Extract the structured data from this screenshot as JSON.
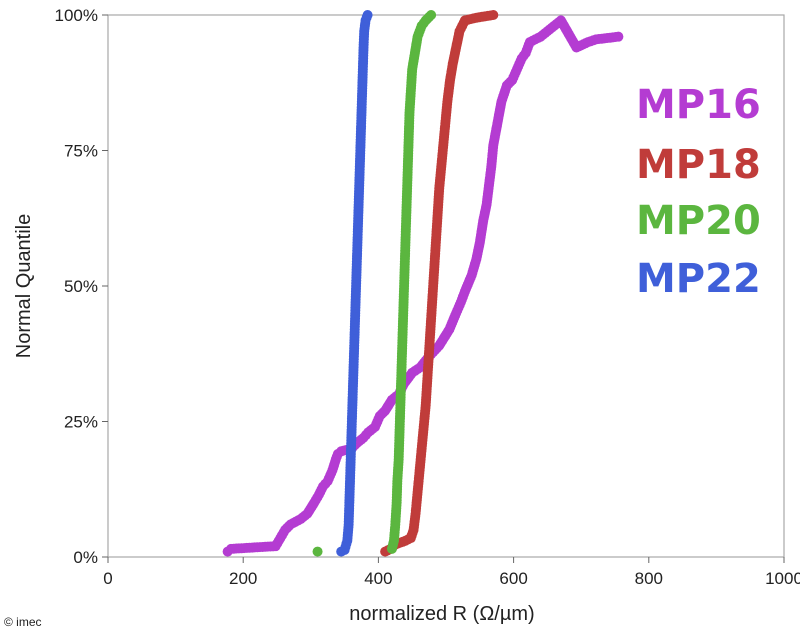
{
  "chart_data": {
    "type": "scatter",
    "title": "",
    "xlabel": "normalized R (Ω/µm)",
    "ylabel": "Normal Quantile",
    "xlim": [
      0,
      1000
    ],
    "ylim": [
      0,
      100
    ],
    "x_ticks": [
      "0",
      "200",
      "400",
      "600",
      "800",
      "1000"
    ],
    "y_ticks": [
      "0%",
      "25%",
      "50%",
      "75%",
      "100%"
    ],
    "grid": false,
    "legend_position": "right",
    "series": [
      {
        "name": "MP16",
        "color": "#b43cd2",
        "points": [
          [
            177,
            1
          ],
          [
            182,
            1.5
          ],
          [
            248,
            2
          ],
          [
            255,
            3.5
          ],
          [
            262,
            5
          ],
          [
            270,
            6
          ],
          [
            285,
            7
          ],
          [
            295,
            8
          ],
          [
            305,
            10
          ],
          [
            312,
            11.5
          ],
          [
            318,
            13
          ],
          [
            325,
            14
          ],
          [
            332,
            16
          ],
          [
            337,
            18
          ],
          [
            340,
            19
          ],
          [
            345,
            19.5
          ],
          [
            360,
            20
          ],
          [
            368,
            21
          ],
          [
            378,
            22
          ],
          [
            385,
            23
          ],
          [
            395,
            24
          ],
          [
            402,
            26
          ],
          [
            410,
            27
          ],
          [
            420,
            29
          ],
          [
            430,
            30
          ],
          [
            438,
            32
          ],
          [
            450,
            34
          ],
          [
            462,
            35
          ],
          [
            475,
            37
          ],
          [
            490,
            39
          ],
          [
            505,
            42
          ],
          [
            515,
            45
          ],
          [
            522,
            47
          ],
          [
            528,
            49
          ],
          [
            538,
            52
          ],
          [
            545,
            55
          ],
          [
            550,
            58
          ],
          [
            555,
            62
          ],
          [
            560,
            65
          ],
          [
            564,
            69
          ],
          [
            567,
            72
          ],
          [
            570,
            76
          ],
          [
            576,
            80
          ],
          [
            582,
            84
          ],
          [
            590,
            87
          ],
          [
            598,
            88
          ],
          [
            605,
            90
          ],
          [
            612,
            92
          ],
          [
            618,
            93
          ],
          [
            624,
            95
          ],
          [
            640,
            96
          ],
          [
            650,
            97
          ],
          [
            660,
            98
          ],
          [
            670,
            99
          ],
          [
            693,
            94
          ],
          [
            710,
            95
          ],
          [
            722,
            95.5
          ],
          [
            755,
            96
          ]
        ]
      },
      {
        "name": "MP18",
        "color": "#c03c3a",
        "points": [
          [
            410,
            1
          ],
          [
            418,
            1.5
          ],
          [
            425,
            2.3
          ],
          [
            440,
            3
          ],
          [
            448,
            3.5
          ],
          [
            452,
            5
          ],
          [
            455,
            8
          ],
          [
            458,
            12
          ],
          [
            461,
            16
          ],
          [
            464,
            20
          ],
          [
            467,
            24
          ],
          [
            470,
            28
          ],
          [
            472,
            32
          ],
          [
            474,
            36
          ],
          [
            476,
            40
          ],
          [
            478,
            44
          ],
          [
            480,
            48
          ],
          [
            482,
            52
          ],
          [
            484,
            56
          ],
          [
            486,
            60
          ],
          [
            488,
            64
          ],
          [
            490,
            68
          ],
          [
            493,
            72
          ],
          [
            496,
            76
          ],
          [
            499,
            80
          ],
          [
            502,
            84
          ],
          [
            506,
            88
          ],
          [
            510,
            91
          ],
          [
            515,
            94
          ],
          [
            520,
            97
          ],
          [
            528,
            99
          ],
          [
            545,
            99.5
          ],
          [
            570,
            100
          ]
        ]
      },
      {
        "name": "MP20",
        "color": "#5bb63f",
        "points": [
          [
            310,
            1
          ],
          [
            420,
            1.5
          ],
          [
            423,
            3
          ],
          [
            425,
            6
          ],
          [
            427,
            10
          ],
          [
            428,
            14
          ],
          [
            430,
            18
          ],
          [
            431,
            22
          ],
          [
            432,
            26
          ],
          [
            433,
            30
          ],
          [
            434,
            34
          ],
          [
            435,
            38
          ],
          [
            436,
            42
          ],
          [
            437,
            46
          ],
          [
            438,
            50
          ],
          [
            439,
            54
          ],
          [
            440,
            58
          ],
          [
            441,
            62
          ],
          [
            442,
            66
          ],
          [
            443,
            70
          ],
          [
            444,
            74
          ],
          [
            445,
            78
          ],
          [
            446,
            82
          ],
          [
            448,
            86
          ],
          [
            450,
            90
          ],
          [
            454,
            93
          ],
          [
            458,
            96
          ],
          [
            464,
            98
          ],
          [
            470,
            99
          ],
          [
            478,
            100
          ]
        ]
      },
      {
        "name": "MP22",
        "color": "#3f5fd9",
        "points": [
          [
            345,
            1
          ],
          [
            350,
            1.3
          ],
          [
            354,
            3
          ],
          [
            356,
            6
          ],
          [
            357,
            10
          ],
          [
            358,
            14
          ],
          [
            359,
            18
          ],
          [
            360,
            22
          ],
          [
            361,
            26
          ],
          [
            362,
            30
          ],
          [
            363,
            34
          ],
          [
            364,
            38
          ],
          [
            365,
            42
          ],
          [
            366,
            46
          ],
          [
            367,
            50
          ],
          [
            368,
            54
          ],
          [
            369,
            58
          ],
          [
            370,
            62
          ],
          [
            371,
            66
          ],
          [
            372,
            70
          ],
          [
            373,
            74
          ],
          [
            374,
            78
          ],
          [
            375,
            82
          ],
          [
            376,
            86
          ],
          [
            377,
            90
          ],
          [
            378,
            94
          ],
          [
            379,
            97
          ],
          [
            381,
            99
          ],
          [
            384,
            100
          ]
        ]
      }
    ]
  },
  "copyright": "© imec"
}
